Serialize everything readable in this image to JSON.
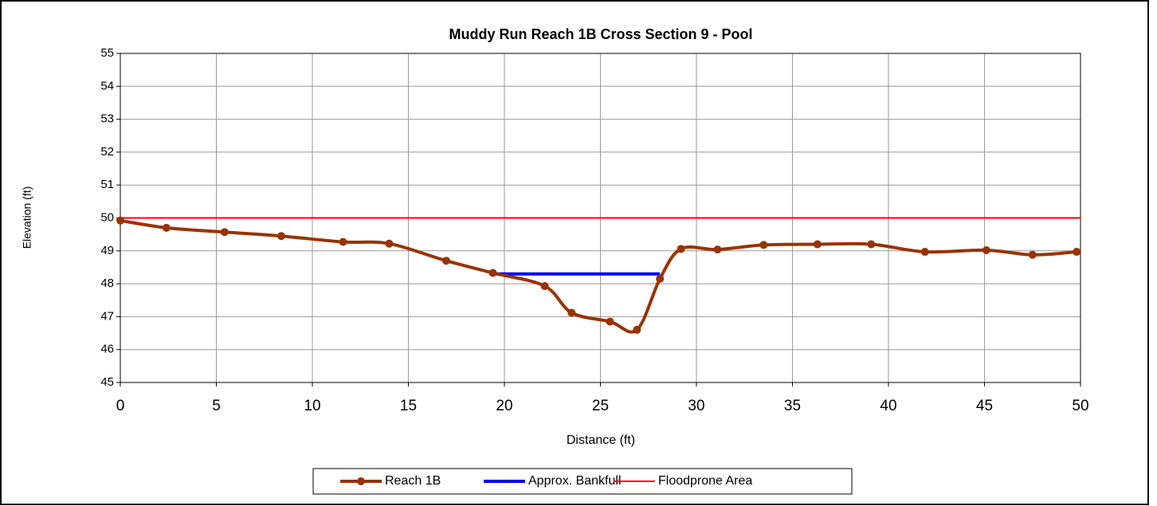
{
  "chart_data": {
    "type": "line",
    "title": "Muddy Run Reach 1B Cross Section 9 - Pool",
    "x_label": "Distance (ft)",
    "y_label": "Elevation (ft)",
    "xlim": [
      0,
      50
    ],
    "xticks": [
      0,
      5,
      10,
      15,
      20,
      25,
      30,
      35,
      40,
      45,
      50
    ],
    "ylim": [
      45,
      55
    ],
    "yticks": [
      45,
      46,
      47,
      48,
      49,
      50,
      51,
      52,
      53,
      54,
      55
    ],
    "grid": true,
    "legend": "bottom",
    "series": [
      {
        "name": "Reach 1B",
        "color": "#993300",
        "markers": true,
        "smooth": true,
        "x": [
          0,
          2.4,
          5.43,
          8.38,
          11.6,
          14.0,
          16.97,
          19.4,
          22.1,
          23.5,
          25.5,
          26.9,
          28.1,
          29.2,
          31.1,
          33.5,
          36.3,
          39.1,
          41.9,
          45.1,
          47.5,
          49.8
        ],
        "values": [
          49.92,
          49.7,
          49.57,
          49.45,
          49.27,
          49.22,
          48.7,
          48.33,
          47.93,
          47.12,
          46.85,
          46.6,
          48.15,
          49.06,
          49.04,
          49.18,
          49.2,
          49.2,
          48.97,
          49.02,
          48.88,
          48.97
        ]
      },
      {
        "name": "Approx. Bankfull",
        "color": "#0000ff",
        "markers": false,
        "smooth": false,
        "x": [
          19.4,
          28.1
        ],
        "values": [
          48.3,
          48.3
        ]
      },
      {
        "name": "Floodprone Area",
        "color": "#ff0000",
        "markers": false,
        "smooth": false,
        "x": [
          0,
          50
        ],
        "values": [
          50,
          50
        ]
      }
    ]
  }
}
